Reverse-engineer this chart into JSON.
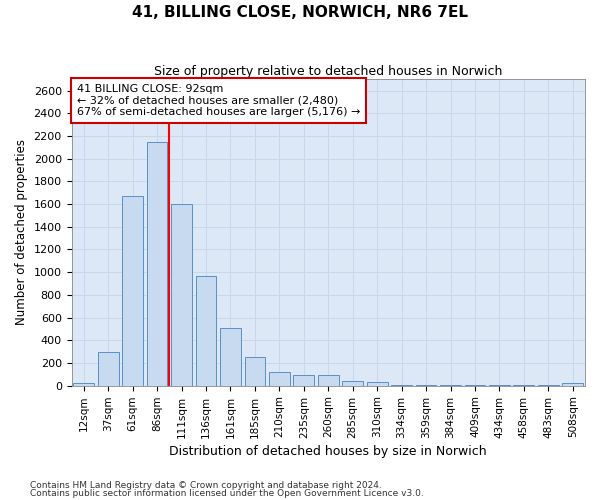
{
  "title": "41, BILLING CLOSE, NORWICH, NR6 7EL",
  "subtitle": "Size of property relative to detached houses in Norwich",
  "xlabel": "Distribution of detached houses by size in Norwich",
  "ylabel": "Number of detached properties",
  "categories": [
    "12sqm",
    "37sqm",
    "61sqm",
    "86sqm",
    "111sqm",
    "136sqm",
    "161sqm",
    "185sqm",
    "210sqm",
    "235sqm",
    "260sqm",
    "285sqm",
    "310sqm",
    "334sqm",
    "359sqm",
    "384sqm",
    "409sqm",
    "434sqm",
    "458sqm",
    "483sqm",
    "508sqm"
  ],
  "values": [
    20,
    295,
    1670,
    2150,
    1600,
    965,
    505,
    250,
    120,
    95,
    90,
    40,
    30,
    5,
    5,
    5,
    5,
    5,
    2,
    2,
    20
  ],
  "bar_color": "#c8daf0",
  "bar_edge_color": "#5a8fc8",
  "red_line_x": 3.5,
  "annotation_text": "41 BILLING CLOSE: 92sqm\n← 32% of detached houses are smaller (2,480)\n67% of semi-detached houses are larger (5,176) →",
  "annotation_box_color": "#ffffff",
  "annotation_box_edge": "#cc0000",
  "ylim": [
    0,
    2700
  ],
  "yticks": [
    0,
    200,
    400,
    600,
    800,
    1000,
    1200,
    1400,
    1600,
    1800,
    2000,
    2200,
    2400,
    2600
  ],
  "grid_color": "#c8d8ec",
  "background_color": "#dce8f5",
  "fig_background": "#ffffff",
  "footer1": "Contains HM Land Registry data © Crown copyright and database right 2024.",
  "footer2": "Contains public sector information licensed under the Open Government Licence v3.0."
}
